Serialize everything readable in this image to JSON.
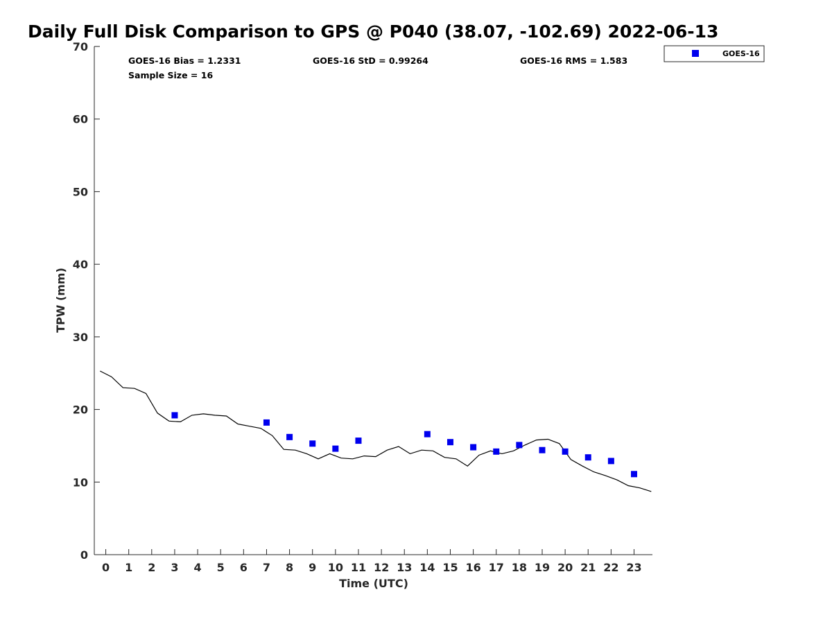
{
  "chart_data": {
    "type": "scatter",
    "title": "Daily Full Disk Comparison to GPS @ P040 (38.07, -102.69) 2022-06-13",
    "xlabel": "Time (UTC)",
    "ylabel": "TPW (mm)",
    "xlim": [
      -0.5,
      23.8
    ],
    "ylim": [
      0,
      70
    ],
    "x_ticks": [
      0,
      1,
      2,
      3,
      4,
      5,
      6,
      7,
      8,
      9,
      10,
      11,
      12,
      13,
      14,
      15,
      16,
      17,
      18,
      19,
      20,
      21,
      22,
      23
    ],
    "y_ticks": [
      0,
      10,
      20,
      30,
      40,
      50,
      60,
      70
    ],
    "grid": false,
    "legend_position": "top-right, outside plot",
    "stats": {
      "bias": "GOES-16 Bias = 1.2331",
      "std": "GOES-16 StD = 0.99264",
      "rms": "GOES-16 RMS = 1.583",
      "sample": "Sample Size = 16"
    },
    "series": [
      {
        "name": "GOES-16",
        "kind": "scatter",
        "marker": "square",
        "color": "#0000ee",
        "x": [
          3,
          7,
          8,
          9,
          10,
          11,
          14,
          15,
          16,
          17,
          18,
          19,
          20,
          21,
          22,
          23
        ],
        "y": [
          19.2,
          18.2,
          16.2,
          15.3,
          14.6,
          15.7,
          16.6,
          15.5,
          14.8,
          14.2,
          15.1,
          14.4,
          14.2,
          13.4,
          12.9,
          11.1
        ]
      },
      {
        "kind": "line",
        "color": "#000000",
        "x": [
          -0.25,
          0.25,
          0.75,
          1.25,
          1.75,
          2.25,
          2.75,
          3.25,
          3.75,
          4.25,
          4.75,
          5.25,
          5.75,
          6.25,
          6.75,
          7.25,
          7.75,
          8.25,
          8.75,
          9.25,
          9.75,
          10.25,
          10.75,
          11.25,
          11.75,
          12.25,
          12.75,
          13.25,
          13.75,
          14.25,
          14.75,
          15.25,
          15.75,
          16.25,
          16.75,
          17.25,
          17.75,
          18.25,
          18.75,
          19.25,
          19.75,
          20.25,
          20.75,
          21.25,
          21.75,
          22.25,
          22.75,
          23.25,
          23.75
        ],
        "y": [
          25.3,
          24.5,
          23.0,
          22.9,
          22.2,
          19.5,
          18.4,
          18.3,
          19.2,
          19.4,
          19.2,
          19.1,
          18.0,
          17.7,
          17.4,
          16.4,
          14.5,
          14.4,
          13.9,
          13.2,
          13.9,
          13.3,
          13.2,
          13.6,
          13.5,
          14.4,
          14.9,
          13.9,
          14.4,
          14.3,
          13.4,
          13.2,
          12.2,
          13.7,
          14.3,
          13.9,
          14.3,
          15.1,
          15.8,
          15.9,
          15.3,
          13.1,
          12.2,
          11.4,
          10.9,
          10.3,
          9.5,
          9.2,
          8.7
        ]
      }
    ]
  }
}
